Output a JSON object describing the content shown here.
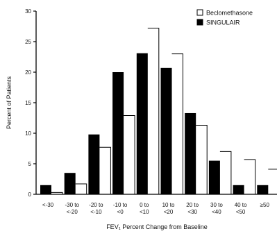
{
  "chart_data": {
    "type": "bar",
    "categories": [
      [
        "<-30"
      ],
      [
        "-30 to",
        "<-20"
      ],
      [
        "-20 to",
        "<-10"
      ],
      [
        "-10 to",
        "<0"
      ],
      [
        "0 to",
        "<10"
      ],
      [
        "10 to",
        "<20"
      ],
      [
        "20 to",
        "<30"
      ],
      [
        "30 to",
        "<40"
      ],
      [
        "40 to",
        "<50"
      ],
      [
        "≥50"
      ]
    ],
    "series": [
      {
        "name": "SINGULAIR",
        "color": "#000000",
        "values": [
          1.5,
          3.5,
          9.8,
          20.0,
          23.1,
          20.7,
          13.3,
          5.5,
          1.5,
          1.5
        ]
      },
      {
        "name": "Beclomethasone",
        "color": "#ffffff",
        "values": [
          0.3,
          1.7,
          7.7,
          12.9,
          27.2,
          23.0,
          11.3,
          7.0,
          5.7,
          4.1
        ]
      }
    ],
    "legend_order": [
      "Beclomethasone",
      "SINGULAIR"
    ],
    "legend_position": "top-right",
    "ylim": [
      0,
      30
    ],
    "yticks": [
      0,
      5,
      10,
      15,
      20,
      25,
      30
    ],
    "ylabel": "Percent of Patients",
    "xlabel": "FEV₁ Percent Change from Baseline",
    "grid": false
  }
}
